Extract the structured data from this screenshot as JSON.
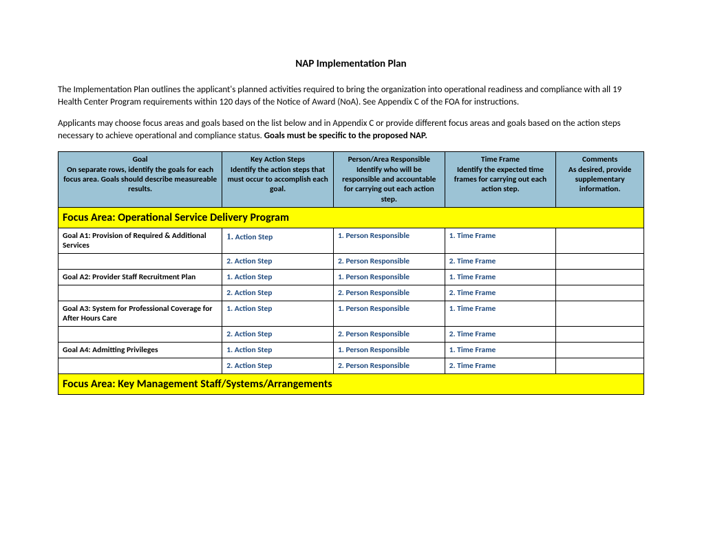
{
  "title": "NAP Implementation Plan",
  "paragraph1": "The Implementation Plan outlines the applicant's planned activities required to bring the organization into operational readiness and compliance with all 19 Health Center Program requirements within 120 days of the Notice of Award (NoA). See Appendix C of the FOA for instructions.",
  "paragraph2_a": "Applicants may choose focus areas and goals based on the list below and in Appendix C or provide different focus areas and goals based on the action steps necessary to achieve operational and compliance status. ",
  "paragraph2_b": "Goals must be specific to the proposed NAP.",
  "columns": [
    {
      "label": "Goal",
      "sub": "On separate rows, identify the goals for each focus area.  Goals should describe measureable results."
    },
    {
      "label": "Key Action Steps",
      "sub": "Identify the action steps that must occur to accomplish each goal."
    },
    {
      "label": "Person/Area Responsible",
      "sub": "Identify who will be responsible and accountable for carrying out each action step."
    },
    {
      "label": "Time Frame",
      "sub": "Identify the expected time frames for carrying out each action step."
    },
    {
      "label": "Comments",
      "sub": "As desired, provide supplementary information."
    }
  ],
  "focus1": "Focus Area: Operational Service Delivery Program",
  "focus2": "Focus Area: Key Management Staff/Systems/Arrangements",
  "goals": [
    {
      "title": "Goal  A1: Provision of Required & Additional Services",
      "r1": {
        "as_num": "1.",
        "as": "Action Step",
        "pr": "1.  Person Responsible",
        "tf": "1.  Time Frame",
        "serif": true
      },
      "r2": {
        "as": "2.  Action Step",
        "pr": "2.  Person Responsible",
        "tf": "2.  Time Frame"
      }
    },
    {
      "title": "Goal  A2: Provider Staff Recruitment Plan",
      "r1": {
        "as": "1.  Action Step",
        "pr": "1.  Person Responsible",
        "tf": "1.  Time Frame"
      },
      "r2": {
        "as": "2.  Action Step",
        "pr": "2.  Person Responsible",
        "tf": "2.  Time Frame"
      }
    },
    {
      "title": "Goal  A3: System for Professional Coverage for After Hours Care",
      "r1": {
        "as": "1.  Action Step",
        "pr": "1.  Person Responsible",
        "tf": "1.  Time Frame"
      },
      "r2": {
        "as": "2.  Action Step",
        "pr": "2.  Person Responsible",
        "tf": "2.  Time Frame"
      }
    },
    {
      "title": "Goal  A4: Admitting Privileges",
      "r1": {
        "as": "1.  Action Step",
        "pr": "1.  Person Responsible",
        "tf": "1.  Time Frame"
      },
      "r2": {
        "as": "2.  Action Step",
        "pr": "2.  Person Responsible",
        "tf": "2.  Time Frame"
      }
    }
  ],
  "colors": {
    "header_bg": "#9cc3d5",
    "focus_bg": "#ffff00",
    "value_color": "#1f497d"
  }
}
